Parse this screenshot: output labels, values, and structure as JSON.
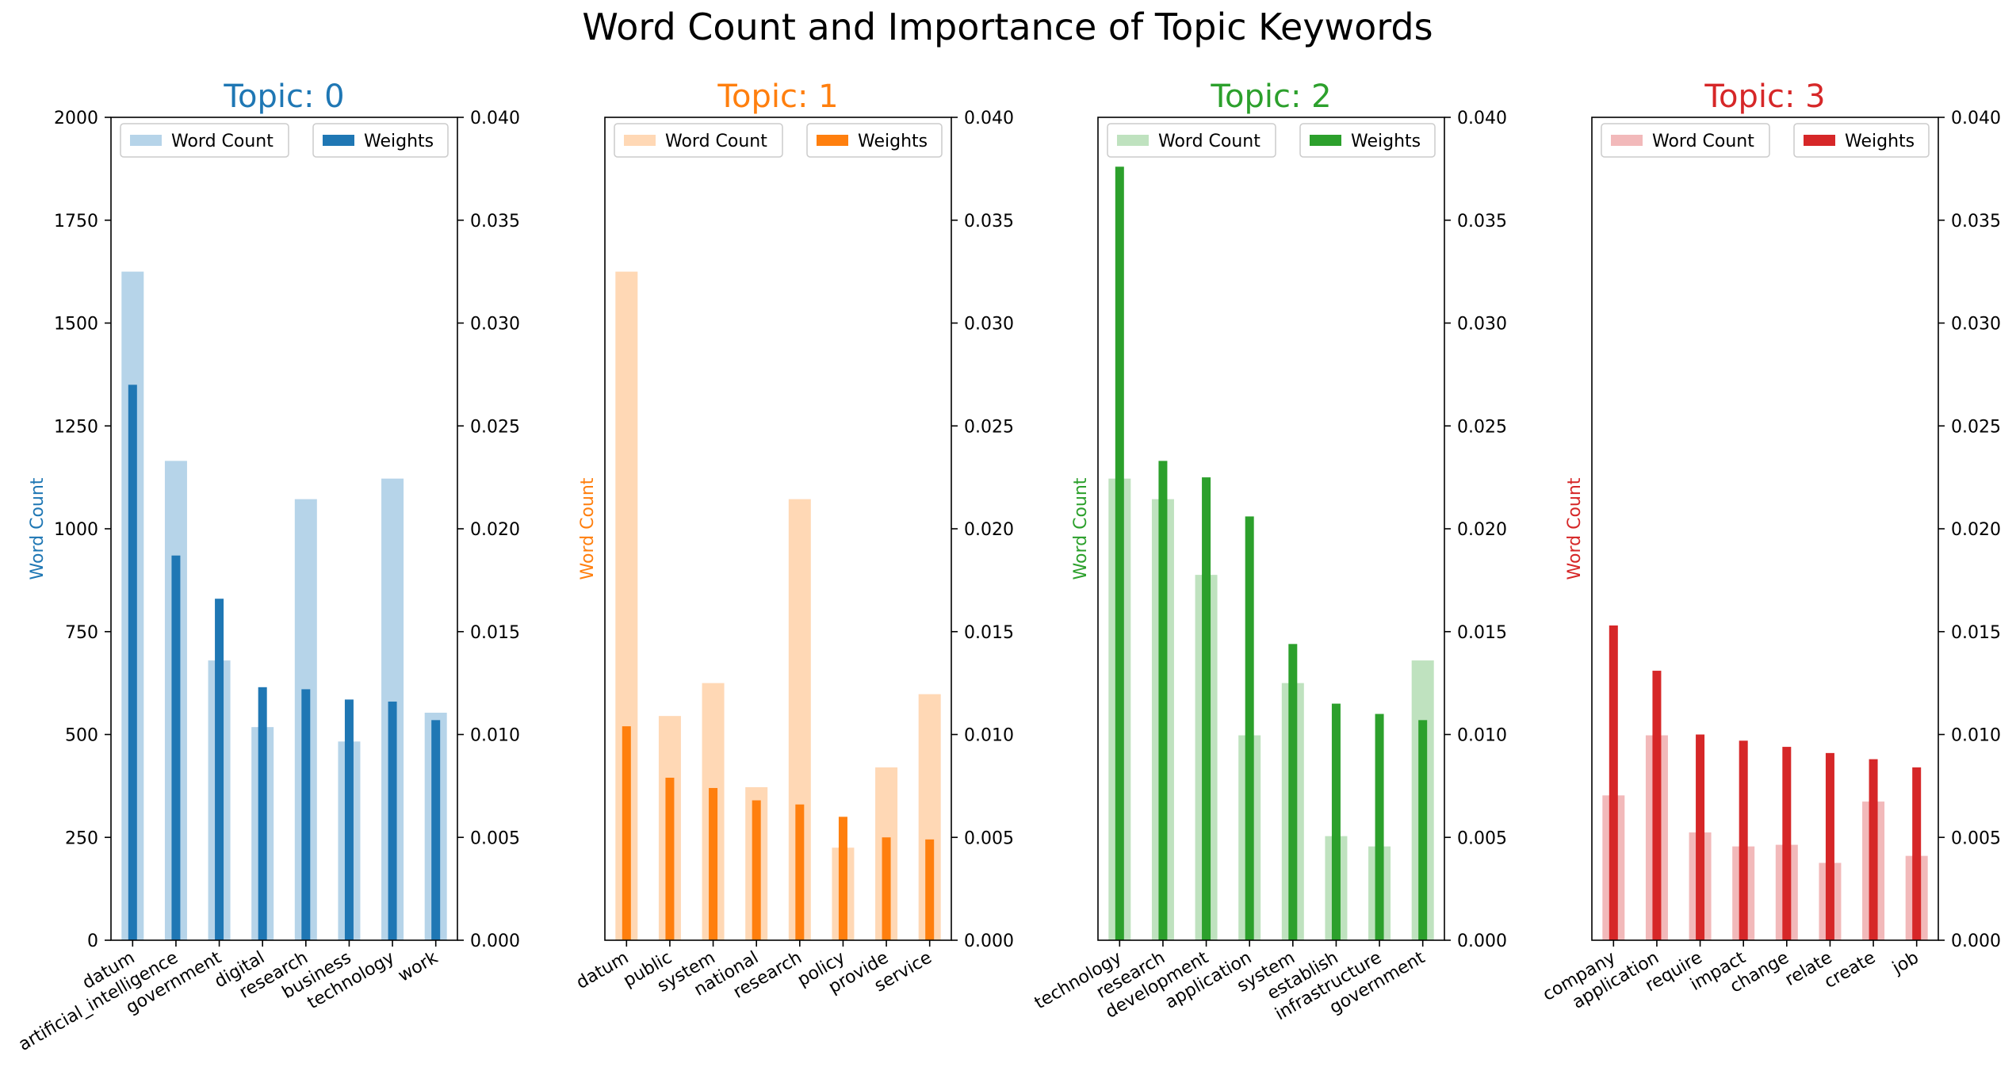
{
  "title": "Word Count and Importance of Topic Keywords",
  "chart_data": [
    {
      "type": "bar",
      "title": "Topic: 0",
      "color": "#1f77b4",
      "light_color": "#b6d4e9",
      "ylabel": "Word Count",
      "ylim": [
        0,
        2000
      ],
      "y2lim": [
        0,
        0.04
      ],
      "yticks": [
        "0",
        "250",
        "500",
        "750",
        "1000",
        "1250",
        "1500",
        "1750",
        "2000"
      ],
      "y2ticks": [
        "0.000",
        "0.005",
        "0.010",
        "0.015",
        "0.020",
        "0.025",
        "0.030",
        "0.035",
        "0.040"
      ],
      "legend": [
        "Word Count",
        "Weights"
      ],
      "categories": [
        "datum",
        "artificial_intelligence",
        "government",
        "digital",
        "research",
        "business",
        "technology",
        "work"
      ],
      "series": [
        {
          "name": "Word Count",
          "axis": "left",
          "values": [
            1625,
            1165,
            680,
            518,
            1072,
            483,
            1122,
            553
          ]
        },
        {
          "name": "Weights",
          "axis": "right",
          "values": [
            0.027,
            0.0187,
            0.0166,
            0.0123,
            0.0122,
            0.0117,
            0.0116,
            0.0107
          ]
        }
      ]
    },
    {
      "type": "bar",
      "title": "Topic: 1",
      "color": "#ff7f0e",
      "light_color": "#ffd8b5",
      "ylabel": "Word Count",
      "ylim": [
        0,
        2000
      ],
      "y2lim": [
        0,
        0.04
      ],
      "yticks": [],
      "y2ticks": [
        "0.000",
        "0.005",
        "0.010",
        "0.015",
        "0.020",
        "0.025",
        "0.030",
        "0.035",
        "0.040"
      ],
      "legend": [
        "Word Count",
        "Weights"
      ],
      "categories": [
        "datum",
        "public",
        "system",
        "national",
        "research",
        "policy",
        "provide",
        "service"
      ],
      "series": [
        {
          "name": "Word Count",
          "axis": "left",
          "values": [
            1625,
            545,
            625,
            372,
            1072,
            225,
            420,
            598
          ]
        },
        {
          "name": "Weights",
          "axis": "right",
          "values": [
            0.0104,
            0.0079,
            0.0074,
            0.0068,
            0.0066,
            0.006,
            0.005,
            0.0049
          ]
        }
      ]
    },
    {
      "type": "bar",
      "title": "Topic: 2",
      "color": "#2ca02c",
      "light_color": "#bfe2bf",
      "ylabel": "Word Count",
      "ylim": [
        0,
        2000
      ],
      "y2lim": [
        0,
        0.04
      ],
      "yticks": [],
      "y2ticks": [
        "0.000",
        "0.005",
        "0.010",
        "0.015",
        "0.020",
        "0.025",
        "0.030",
        "0.035",
        "0.040"
      ],
      "legend": [
        "Word Count",
        "Weights"
      ],
      "categories": [
        "technology",
        "research",
        "development",
        "application",
        "system",
        "establish",
        "infrastructure",
        "government"
      ],
      "series": [
        {
          "name": "Word Count",
          "axis": "left",
          "values": [
            1122,
            1072,
            888,
            498,
            625,
            253,
            228,
            680
          ]
        },
        {
          "name": "Weights",
          "axis": "right",
          "values": [
            0.0376,
            0.0233,
            0.0225,
            0.0206,
            0.0144,
            0.0115,
            0.011,
            0.0107
          ]
        }
      ]
    },
    {
      "type": "bar",
      "title": "Topic: 3",
      "color": "#d62728",
      "light_color": "#f2b9ba",
      "ylabel": "Word Count",
      "ylim": [
        0,
        2000
      ],
      "y2lim": [
        0,
        0.04
      ],
      "yticks": [],
      "y2ticks": [
        "0.000",
        "0.005",
        "0.010",
        "0.015",
        "0.020",
        "0.025",
        "0.030",
        "0.035",
        "0.040"
      ],
      "legend": [
        "Word Count",
        "Weights"
      ],
      "categories": [
        "company",
        "application",
        "require",
        "impact",
        "change",
        "relate",
        "create",
        "job"
      ],
      "series": [
        {
          "name": "Word Count",
          "axis": "left",
          "values": [
            352,
            498,
            262,
            228,
            232,
            188,
            337,
            205
          ]
        },
        {
          "name": "Weights",
          "axis": "right",
          "values": [
            0.0153,
            0.0131,
            0.01,
            0.0097,
            0.0094,
            0.0091,
            0.0088,
            0.0084
          ]
        }
      ]
    }
  ]
}
